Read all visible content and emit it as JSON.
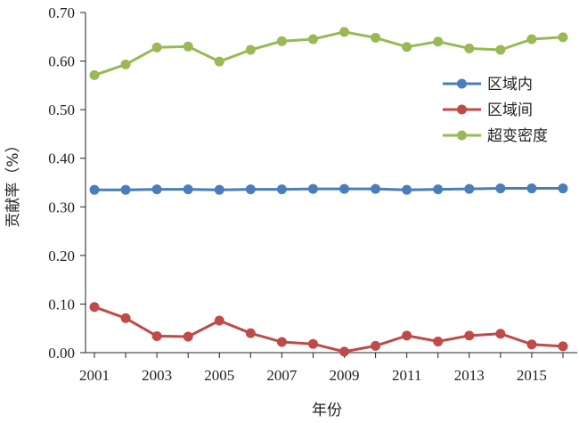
{
  "chart_data": {
    "type": "line",
    "title": "",
    "xlabel": "年份",
    "ylabel": "贡献率（%）",
    "x": [
      2001,
      2002,
      2003,
      2004,
      2005,
      2006,
      2007,
      2008,
      2009,
      2010,
      2011,
      2012,
      2013,
      2014,
      2015,
      2016
    ],
    "x_tick_labels": [
      "2001",
      "2003",
      "2005",
      "2007",
      "2009",
      "2011",
      "2013",
      "2015"
    ],
    "y_tick_labels": [
      "0.00",
      "0.10",
      "0.20",
      "0.30",
      "0.40",
      "0.50",
      "0.60",
      "0.70"
    ],
    "ylim": [
      0,
      0.7
    ],
    "grid": false,
    "legend_position": "right",
    "series": [
      {
        "name": "区域内",
        "color": "#4a7ebb",
        "values": [
          0.335,
          0.335,
          0.336,
          0.336,
          0.335,
          0.336,
          0.336,
          0.337,
          0.337,
          0.337,
          0.335,
          0.336,
          0.337,
          0.338,
          0.338,
          0.338
        ]
      },
      {
        "name": "区域间",
        "color": "#be4b48",
        "values": [
          0.094,
          0.071,
          0.034,
          0.033,
          0.066,
          0.04,
          0.022,
          0.018,
          0.002,
          0.014,
          0.035,
          0.023,
          0.035,
          0.039,
          0.017,
          0.013
        ]
      },
      {
        "name": "超变密度",
        "color": "#98b954",
        "values": [
          0.571,
          0.593,
          0.628,
          0.63,
          0.599,
          0.623,
          0.641,
          0.645,
          0.66,
          0.648,
          0.629,
          0.64,
          0.626,
          0.623,
          0.645,
          0.649
        ]
      }
    ]
  }
}
